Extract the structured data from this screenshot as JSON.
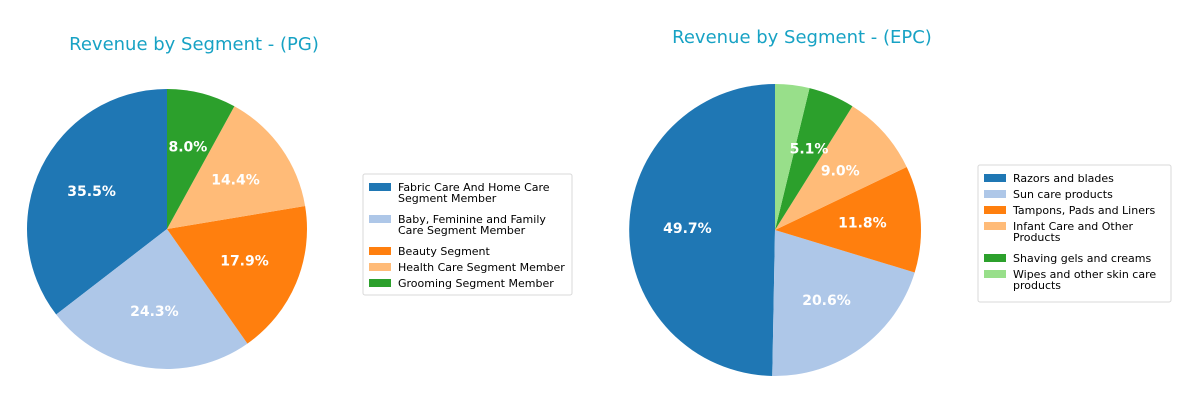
{
  "chart_data": [
    {
      "type": "pie",
      "title": "Revenue by Segment - (PG)",
      "categories": [
        [
          "Fabric Care And Home Care",
          "Segment Member"
        ],
        [
          "Baby, Feminine and Family",
          "Care Segment Member"
        ],
        [
          "Beauty Segment"
        ],
        [
          "Health Care Segment Member"
        ],
        [
          "Grooming Segment Member"
        ]
      ],
      "values": [
        35.5,
        24.3,
        17.9,
        14.4,
        8.0
      ],
      "labels": [
        "35.5%",
        "24.3%",
        "17.9%",
        "14.4%",
        "8.0%"
      ],
      "colors": [
        "#1f77b4",
        "#aec7e8",
        "#ff7f0e",
        "#ffbb78",
        "#2ca02c"
      ],
      "start_angle": "top, counterclockwise",
      "legend_position": "right"
    },
    {
      "type": "pie",
      "title": "Revenue by Segment - (EPC)",
      "categories": [
        [
          "Razors and blades"
        ],
        [
          "Sun care products"
        ],
        [
          "Tampons, Pads and Liners"
        ],
        [
          "Infant Care and Other",
          "Products"
        ],
        [
          "Shaving gels and creams"
        ],
        [
          "Wipes and other skin care",
          "products"
        ]
      ],
      "values": [
        49.7,
        20.6,
        11.8,
        9.0,
        5.1,
        3.8
      ],
      "labels": [
        "49.7%",
        "20.6%",
        "11.8%",
        "9.0%",
        "5.1%",
        ""
      ],
      "colors": [
        "#1f77b4",
        "#aec7e8",
        "#ff7f0e",
        "#ffbb78",
        "#2ca02c",
        "#98df8a"
      ],
      "start_angle": "top, counterclockwise",
      "legend_position": "right"
    }
  ]
}
